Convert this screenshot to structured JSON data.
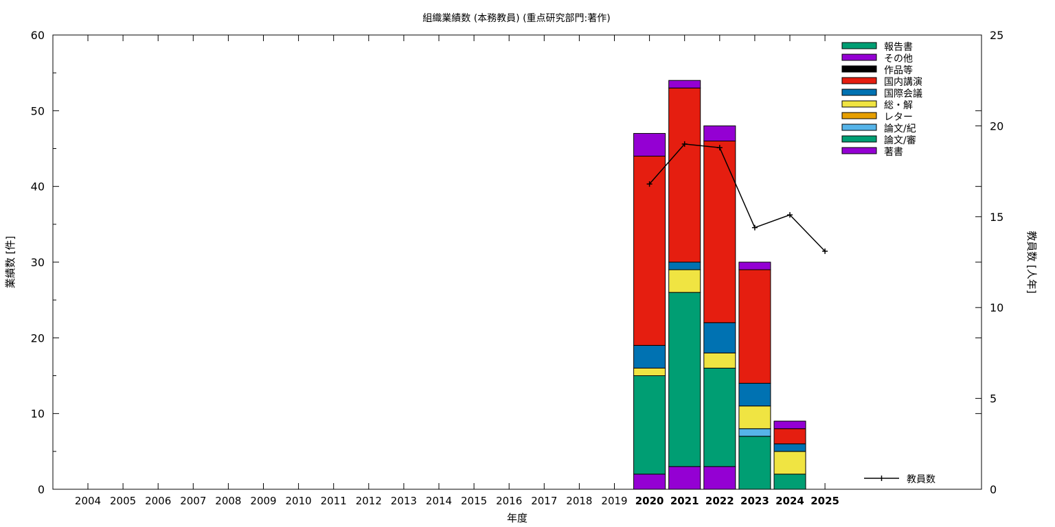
{
  "chart_data": {
    "type": "bar",
    "title": "組織業績数 (本務教員) (重点研究部門:著作)",
    "xlabel": "年度",
    "ylabel": "業績数 [件]",
    "y2label": "教員数 [人年]",
    "ylim": [
      0,
      60
    ],
    "y2lim": [
      0,
      25
    ],
    "yticks": [
      "0",
      "10",
      "20",
      "30",
      "40",
      "50",
      "60"
    ],
    "y2ticks": [
      "0",
      "5",
      "10",
      "15",
      "20",
      "25"
    ],
    "grid": false,
    "legend_position": "top-right",
    "categories": [
      "2004",
      "2005",
      "2006",
      "2007",
      "2008",
      "2009",
      "2010",
      "2011",
      "2012",
      "2013",
      "2014",
      "2015",
      "2016",
      "2017",
      "2018",
      "2019",
      "2020",
      "2021",
      "2022",
      "2023",
      "2024",
      "2025"
    ],
    "highlighted_categories": [
      "2020",
      "2021",
      "2022",
      "2023",
      "2024",
      "2025"
    ],
    "stack_order_bottom_to_top": [
      "著書",
      "論文/審",
      "論文/紀",
      "レター",
      "総・解",
      "国際会議",
      "国内講演",
      "作品等",
      "その他",
      "報告書"
    ],
    "series": [
      {
        "name": "報告書",
        "color": "#009e73",
        "values": [
          0,
          0,
          0,
          0,
          0,
          0,
          0,
          0,
          0,
          0,
          0,
          0,
          0,
          0,
          0,
          0,
          0,
          0,
          0,
          0,
          0,
          0
        ]
      },
      {
        "name": "その他",
        "color": "#9400d3",
        "values": [
          0,
          0,
          0,
          0,
          0,
          0,
          0,
          0,
          0,
          0,
          0,
          0,
          0,
          0,
          0,
          0,
          3,
          1,
          2,
          1,
          1,
          0
        ]
      },
      {
        "name": "作品等",
        "color": "#000000",
        "values": [
          0,
          0,
          0,
          0,
          0,
          0,
          0,
          0,
          0,
          0,
          0,
          0,
          0,
          0,
          0,
          0,
          0,
          0,
          0,
          0,
          0,
          0
        ]
      },
      {
        "name": "国内講演",
        "color": "#e51e10",
        "values": [
          0,
          0,
          0,
          0,
          0,
          0,
          0,
          0,
          0,
          0,
          0,
          0,
          0,
          0,
          0,
          0,
          25,
          23,
          24,
          15,
          2,
          0
        ]
      },
      {
        "name": "国際会議",
        "color": "#0072b2",
        "values": [
          0,
          0,
          0,
          0,
          0,
          0,
          0,
          0,
          0,
          0,
          0,
          0,
          0,
          0,
          0,
          0,
          3,
          1,
          4,
          3,
          1,
          0
        ]
      },
      {
        "name": "総・解",
        "color": "#f0e442",
        "values": [
          0,
          0,
          0,
          0,
          0,
          0,
          0,
          0,
          0,
          0,
          0,
          0,
          0,
          0,
          0,
          0,
          1,
          3,
          2,
          3,
          3,
          0
        ]
      },
      {
        "name": "レター",
        "color": "#e69f00",
        "values": [
          0,
          0,
          0,
          0,
          0,
          0,
          0,
          0,
          0,
          0,
          0,
          0,
          0,
          0,
          0,
          0,
          0,
          0,
          0,
          0,
          0,
          0
        ]
      },
      {
        "name": "論文/紀",
        "color": "#56b4e9",
        "values": [
          0,
          0,
          0,
          0,
          0,
          0,
          0,
          0,
          0,
          0,
          0,
          0,
          0,
          0,
          0,
          0,
          0,
          0,
          0,
          1,
          0,
          0
        ]
      },
      {
        "name": "論文/審",
        "color": "#009e73",
        "values": [
          0,
          0,
          0,
          0,
          0,
          0,
          0,
          0,
          0,
          0,
          0,
          0,
          0,
          0,
          0,
          0,
          13,
          23,
          13,
          7,
          2,
          0
        ]
      },
      {
        "name": "著書",
        "color": "#9400d3",
        "values": [
          0,
          0,
          0,
          0,
          0,
          0,
          0,
          0,
          0,
          0,
          0,
          0,
          0,
          0,
          0,
          0,
          2,
          3,
          3,
          0,
          0,
          0
        ]
      }
    ],
    "line_series": {
      "name": "教員数",
      "axis": "y2",
      "color": "#000000",
      "x": [
        "2020",
        "2021",
        "2022",
        "2023",
        "2024",
        "2025"
      ],
      "values": [
        16.8,
        19.0,
        18.8,
        14.4,
        15.1,
        13.1
      ]
    }
  }
}
